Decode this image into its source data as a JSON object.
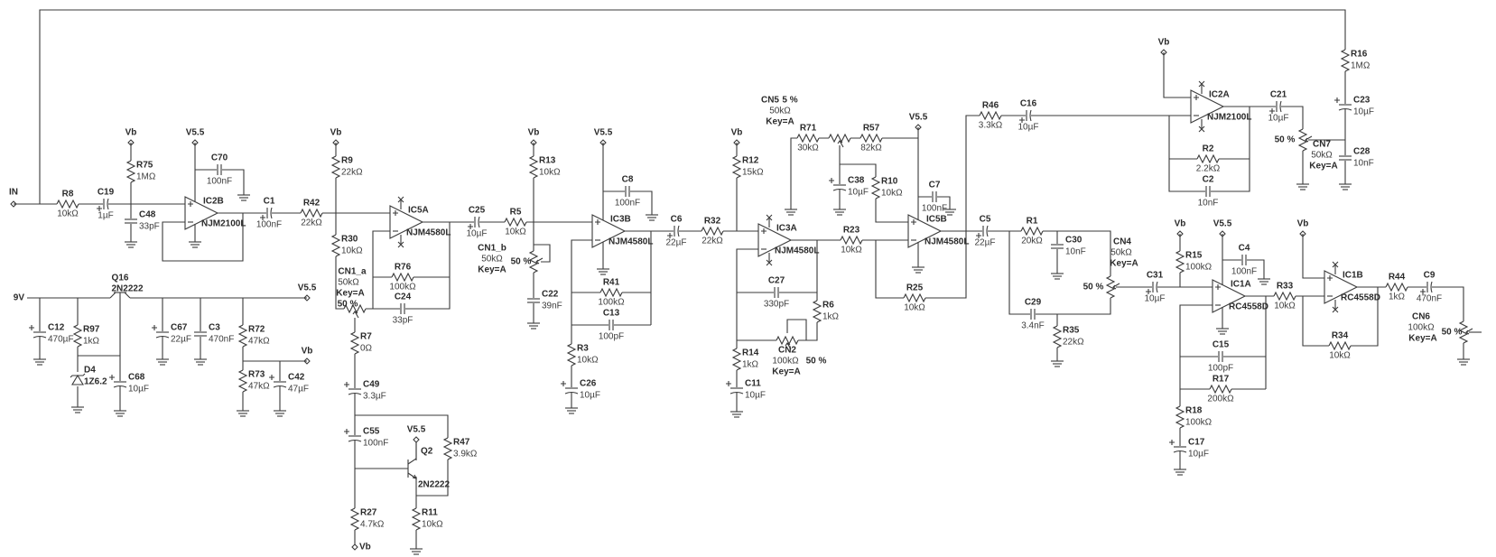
{
  "rails": {
    "vb": "Vb",
    "v55": "V5.5",
    "input": "IN",
    "supply": "9V"
  },
  "components": {
    "R8": {
      "ref": "R8",
      "value": "10kΩ"
    },
    "R75": {
      "ref": "R75",
      "value": "1MΩ"
    },
    "C19": {
      "ref": "C19",
      "value": "1µF"
    },
    "C48": {
      "ref": "C48",
      "value": "33pF"
    },
    "C70": {
      "ref": "C70",
      "value": "100nF"
    },
    "C1": {
      "ref": "C1",
      "value": "100nF"
    },
    "R42": {
      "ref": "R42",
      "value": "22kΩ"
    },
    "R9": {
      "ref": "R9",
      "value": "22kΩ"
    },
    "R30": {
      "ref": "R30",
      "value": "10kΩ"
    },
    "R76": {
      "ref": "R76",
      "value": "100kΩ"
    },
    "C24": {
      "ref": "C24",
      "value": "33pF"
    },
    "CN1_a": {
      "ref": "CN1_a",
      "value": "50kΩ",
      "key": "Key=A",
      "setting": "50 %"
    },
    "R7": {
      "ref": "R7",
      "value": "0Ω"
    },
    "C49": {
      "ref": "C49",
      "value": "3.3µF"
    },
    "C55": {
      "ref": "C55",
      "value": "100nF"
    },
    "R47": {
      "ref": "R47",
      "value": "3.9kΩ"
    },
    "R27": {
      "ref": "R27",
      "value": "4.7kΩ"
    },
    "R11": {
      "ref": "R11",
      "value": "10kΩ"
    },
    "C12": {
      "ref": "C12",
      "value": "470µF"
    },
    "R97": {
      "ref": "R97",
      "value": "1kΩ"
    },
    "C68": {
      "ref": "C68",
      "value": "10µF"
    },
    "C67": {
      "ref": "C67",
      "value": "22µF"
    },
    "C3": {
      "ref": "C3",
      "value": "470nF"
    },
    "R72": {
      "ref": "R72",
      "value": "47kΩ"
    },
    "R73": {
      "ref": "R73",
      "value": "47kΩ"
    },
    "C42": {
      "ref": "C42",
      "value": "47µF"
    },
    "C25": {
      "ref": "C25",
      "value": "10µF"
    },
    "R5": {
      "ref": "R5",
      "value": "10kΩ"
    },
    "R13": {
      "ref": "R13",
      "value": "10kΩ"
    },
    "CN1_b": {
      "ref": "CN1_b",
      "value": "50kΩ",
      "key": "Key=A",
      "setting": "50 %"
    },
    "C22": {
      "ref": "C22",
      "value": "39nF"
    },
    "C8": {
      "ref": "C8",
      "value": "100nF"
    },
    "R41": {
      "ref": "R41",
      "value": "100kΩ"
    },
    "C13": {
      "ref": "C13",
      "value": "100pF"
    },
    "R3": {
      "ref": "R3",
      "value": "10kΩ"
    },
    "C26": {
      "ref": "C26",
      "value": "10µF"
    },
    "C6": {
      "ref": "C6",
      "value": "22µF"
    },
    "R32": {
      "ref": "R32",
      "value": "22kΩ"
    },
    "R12": {
      "ref": "R12",
      "value": "15kΩ"
    },
    "C27": {
      "ref": "C27",
      "value": "330pF"
    },
    "R6": {
      "ref": "R6",
      "value": "1kΩ"
    },
    "CN2": {
      "ref": "CN2",
      "value": "100kΩ",
      "key": "Key=A",
      "setting": "50 %"
    },
    "R14": {
      "ref": "R14",
      "value": "1kΩ"
    },
    "C11": {
      "ref": "C11",
      "value": "10µF"
    },
    "R23": {
      "ref": "R23",
      "value": "10kΩ"
    },
    "R71": {
      "ref": "R71",
      "value": "30kΩ"
    },
    "CN5": {
      "ref": "CN5",
      "value": "50kΩ",
      "key": "Key=A",
      "setting": "5 %"
    },
    "R57": {
      "ref": "R57",
      "value": "82kΩ"
    },
    "C38": {
      "ref": "C38",
      "value": "10µF"
    },
    "R10": {
      "ref": "R10",
      "value": "10kΩ"
    },
    "C7": {
      "ref": "C7",
      "value": "100nF"
    },
    "R25": {
      "ref": "R25",
      "value": "10kΩ"
    },
    "R46": {
      "ref": "R46",
      "value": "3.3kΩ"
    },
    "C16": {
      "ref": "C16",
      "value": "10µF"
    },
    "C5": {
      "ref": "C5",
      "value": "22µF"
    },
    "R1": {
      "ref": "R1",
      "value": "20kΩ"
    },
    "C30": {
      "ref": "C30",
      "value": "10nF"
    },
    "C29": {
      "ref": "C29",
      "value": "3.4nF"
    },
    "R35": {
      "ref": "R35",
      "value": "22kΩ"
    },
    "CN4": {
      "ref": "CN4",
      "value": "50kΩ",
      "key": "Key=A",
      "setting": "50 %"
    },
    "R2": {
      "ref": "R2",
      "value": "2.2kΩ"
    },
    "C2": {
      "ref": "C2",
      "value": "10nF"
    },
    "C21": {
      "ref": "C21",
      "value": "10µF"
    },
    "CN7": {
      "ref": "CN7",
      "value": "50kΩ",
      "key": "Key=A",
      "setting": "50 %"
    },
    "R16": {
      "ref": "R16",
      "value": "1MΩ"
    },
    "C23": {
      "ref": "C23",
      "value": "10µF"
    },
    "C28": {
      "ref": "C28",
      "value": "10nF"
    },
    "C31": {
      "ref": "C31",
      "value": "10µF"
    },
    "R15": {
      "ref": "R15",
      "value": "100kΩ"
    },
    "C4": {
      "ref": "C4",
      "value": "100nF"
    },
    "C15": {
      "ref": "C15",
      "value": "100pF"
    },
    "R17": {
      "ref": "R17",
      "value": "200kΩ"
    },
    "R18": {
      "ref": "R18",
      "value": "100kΩ"
    },
    "C17": {
      "ref": "C17",
      "value": "10µF"
    },
    "R33": {
      "ref": "R33",
      "value": "10kΩ"
    },
    "R34": {
      "ref": "R34",
      "value": "10kΩ"
    },
    "R44": {
      "ref": "R44",
      "value": "1kΩ"
    },
    "C9": {
      "ref": "C9",
      "value": "470nF"
    },
    "CN6": {
      "ref": "CN6",
      "value": "100kΩ",
      "key": "Key=A",
      "setting": "50 %"
    }
  },
  "opamps": {
    "IC2B": {
      "ref": "IC2B",
      "part": "NJM2100L"
    },
    "IC5A": {
      "ref": "IC5A",
      "part": "NJM4580L"
    },
    "IC3B": {
      "ref": "IC3B",
      "part": "NJM4580L"
    },
    "IC3A": {
      "ref": "IC3A",
      "part": "NJM4580L"
    },
    "IC5B": {
      "ref": "IC5B",
      "part": "NJM4580L"
    },
    "IC2A": {
      "ref": "IC2A",
      "part": "NJM2100L"
    },
    "IC1A": {
      "ref": "IC1A",
      "part": "RC4558D"
    },
    "IC1B": {
      "ref": "IC1B",
      "part": "RC4558D"
    }
  },
  "semis": {
    "Q16": {
      "ref": "Q16",
      "part": "2N2222"
    },
    "Q2": {
      "ref": "Q2",
      "part": "2N2222"
    },
    "D4": {
      "ref": "D4",
      "part": "1Z6.2"
    }
  },
  "colors": {
    "wire": "#3a3a3a",
    "background": "#ffffff"
  }
}
